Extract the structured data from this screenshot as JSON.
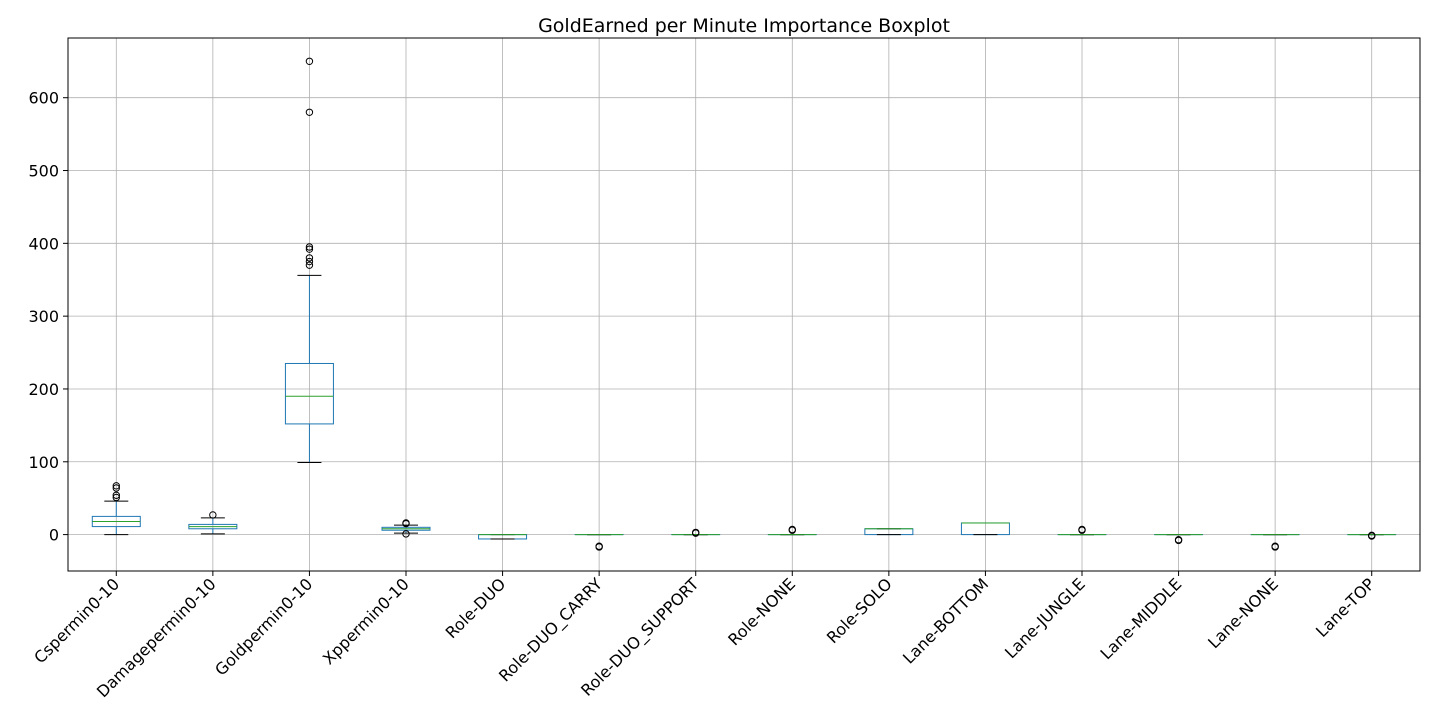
{
  "chart_data": {
    "type": "boxplot",
    "title": "GoldEarned per Minute Importance Boxplot",
    "xlabel": "",
    "ylabel": "",
    "ylim": [
      -50,
      682
    ],
    "yticks": [
      0,
      100,
      200,
      300,
      400,
      500,
      600
    ],
    "grid": true,
    "categories": [
      "Cspermin0-10",
      "Damagepermin0-10",
      "Goldpermin0-10",
      "Xppermin0-10",
      "Role-DUO",
      "Role-DUO_CARRY",
      "Role-DUO_SUPPORT",
      "Role-NONE",
      "Role-SOLO",
      "Lane-BOTTOM",
      "Lane-JUNGLE",
      "Lane-MIDDLE",
      "Lane-NONE",
      "Lane-TOP"
    ],
    "boxes": [
      {
        "whislo": 0,
        "q1": 11,
        "med": 18,
        "q3": 25,
        "whishi": 46,
        "fliers": [
          51,
          54,
          64,
          67
        ]
      },
      {
        "whislo": 1,
        "q1": 8,
        "med": 11,
        "q3": 14,
        "whishi": 23,
        "fliers": [
          27
        ]
      },
      {
        "whislo": 99,
        "q1": 152,
        "med": 190,
        "q3": 235,
        "whishi": 356,
        "fliers": [
          370,
          375,
          380,
          392,
          395,
          580,
          650
        ]
      },
      {
        "whislo": 2,
        "q1": 6,
        "med": 8,
        "q3": 10,
        "whishi": 13,
        "fliers": [
          1,
          15,
          16
        ]
      },
      {
        "whislo": -6,
        "q1": -6,
        "med": 0,
        "q3": 0,
        "whishi": 0,
        "fliers": []
      },
      {
        "whislo": 0,
        "q1": 0,
        "med": 0,
        "q3": 0,
        "whishi": 0,
        "fliers": [
          -16,
          -17
        ]
      },
      {
        "whislo": 0,
        "q1": 0,
        "med": 0,
        "q3": 0,
        "whishi": 0,
        "fliers": [
          2,
          3
        ]
      },
      {
        "whislo": 0,
        "q1": 0,
        "med": 0,
        "q3": 0,
        "whishi": 0,
        "fliers": [
          6,
          7
        ]
      },
      {
        "whislo": 0,
        "q1": 0,
        "med": 8,
        "q3": 8,
        "whishi": 8,
        "fliers": []
      },
      {
        "whislo": 0,
        "q1": 0,
        "med": 16,
        "q3": 16,
        "whishi": 16,
        "fliers": []
      },
      {
        "whislo": 0,
        "q1": 0,
        "med": 0,
        "q3": 0,
        "whishi": 0,
        "fliers": [
          6,
          7
        ]
      },
      {
        "whislo": 0,
        "q1": 0,
        "med": 0,
        "q3": 0,
        "whishi": 0,
        "fliers": [
          -7,
          -8
        ]
      },
      {
        "whislo": 0,
        "q1": 0,
        "med": 0,
        "q3": 0,
        "whishi": 0,
        "fliers": [
          -16,
          -17
        ]
      },
      {
        "whislo": 0,
        "q1": 0,
        "med": 0,
        "q3": 0,
        "whishi": 0,
        "fliers": [
          -1,
          -2
        ]
      }
    ],
    "colors": {
      "box": "#1f77b4",
      "median": "#2ca02c",
      "cap": "#000000",
      "flier": "#000000",
      "grid": "#b0b0b0"
    }
  }
}
